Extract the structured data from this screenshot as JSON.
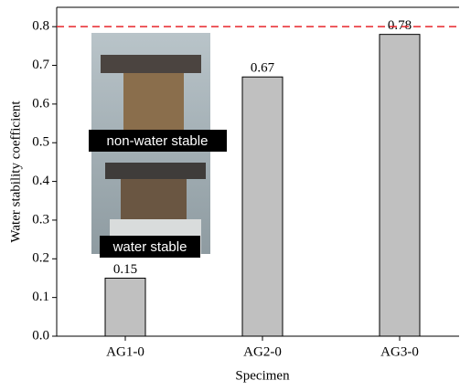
{
  "chart_data": {
    "type": "bar",
    "x_label": "Specimen",
    "y_label": "Water stability coefficient",
    "categories": [
      "AG1-0",
      "AG2-0",
      "AG3-0"
    ],
    "values": [
      0.15,
      0.67,
      0.78
    ],
    "color": "#c0c0c0",
    "ylim": [
      0,
      0.85
    ],
    "yticks": [
      {
        "value": 0,
        "label": "0.0"
      },
      0.1,
      0.2,
      0.3,
      0.4,
      0.5,
      0.6,
      0.7,
      0.8
    ],
    "reference_line": {
      "value": 0.8,
      "color": "#e8262b",
      "style": "dashed"
    },
    "inset_labels": [
      "non-water stable",
      "water stable"
    ]
  }
}
